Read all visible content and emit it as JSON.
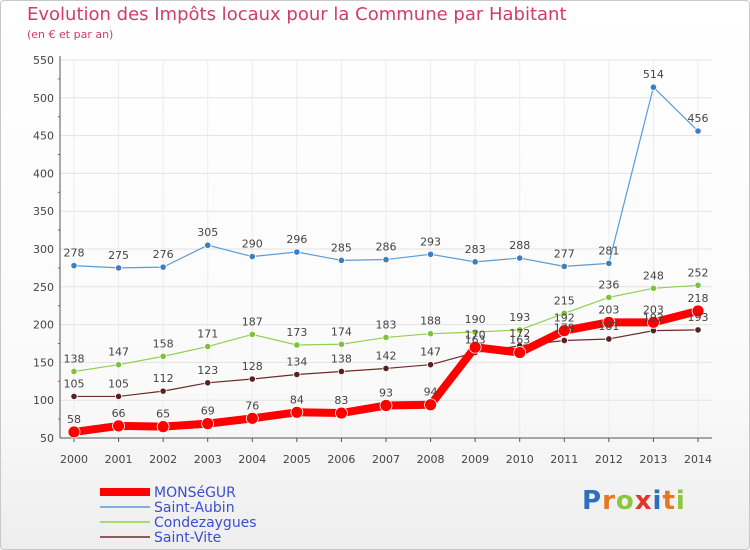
{
  "header": {
    "title": "Evolution des Impôts locaux pour la Commune par Habitant",
    "subtitle": "(en € et par an)"
  },
  "logo": {
    "letters": [
      "P",
      "r",
      "o",
      "x",
      "i",
      "t",
      "i"
    ],
    "colors": [
      "#2c6fbf",
      "#e87722",
      "#8dc63f",
      "#e2342d",
      "#2c6fbf",
      "#e87722",
      "#8dc63f"
    ]
  },
  "chart_data": {
    "type": "line",
    "title": "Evolution des Impôts locaux pour la Commune par Habitant",
    "subtitle": "(en € et par an)",
    "xlabel": "",
    "ylabel": "",
    "x": [
      2000,
      2001,
      2002,
      2003,
      2004,
      2005,
      2006,
      2007,
      2008,
      2009,
      2010,
      2011,
      2012,
      2013,
      2014
    ],
    "ylim": [
      50,
      550
    ],
    "yticks": [
      50,
      100,
      150,
      200,
      250,
      300,
      350,
      400,
      450,
      500,
      550
    ],
    "grid": true,
    "legend_position": "bottom-left",
    "series": [
      {
        "name": "Saint-Aubin",
        "color": "#5b9bd5",
        "values": [
          278,
          275,
          276,
          305,
          290,
          296,
          285,
          286,
          293,
          283,
          288,
          277,
          281,
          514,
          456
        ]
      },
      {
        "name": "Condezaygues",
        "color": "#92d050",
        "values": [
          138,
          147,
          158,
          171,
          187,
          173,
          174,
          183,
          188,
          190,
          193,
          215,
          236,
          248,
          252
        ]
      },
      {
        "name": "Saint-Vite",
        "color": "#6b2b2b",
        "values": [
          105,
          105,
          112,
          123,
          128,
          134,
          138,
          142,
          147,
          163,
          172,
          179,
          181,
          192,
          193
        ]
      },
      {
        "name": "MONSéGUR",
        "color": "#ff0000",
        "values": [
          58,
          66,
          65,
          69,
          76,
          84,
          83,
          93,
          94,
          170,
          163,
          192,
          203,
          203,
          218
        ]
      }
    ],
    "legend_order": [
      "MONSéGUR",
      "Saint-Aubin",
      "Condezaygues",
      "Saint-Vite"
    ]
  }
}
